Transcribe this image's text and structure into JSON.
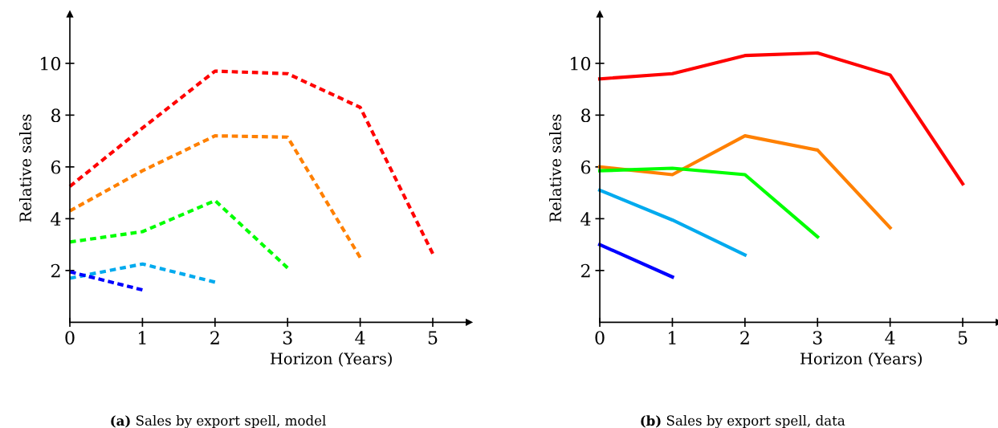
{
  "chart_data": [
    {
      "type": "line",
      "title": "(a) Sales by export spell, model",
      "xlabel": "Horizon (Years)",
      "ylabel": "Relative sales",
      "xlim": [
        0,
        5.5
      ],
      "ylim": [
        0,
        11.9
      ],
      "xticks": [
        0,
        1,
        2,
        3,
        4,
        5
      ],
      "yticks": [
        2,
        4,
        6,
        8,
        10
      ],
      "line_style": "dashed",
      "grid": false,
      "legend": false,
      "series": [
        {
          "color": "#ff0000",
          "x": [
            0,
            1,
            2,
            3,
            4,
            5
          ],
          "values": [
            5.25,
            7.5,
            9.7,
            9.6,
            8.3,
            2.65
          ]
        },
        {
          "color": "#ff8000",
          "x": [
            0,
            1,
            2,
            3,
            4
          ],
          "values": [
            4.3,
            5.85,
            7.2,
            7.15,
            2.5
          ]
        },
        {
          "color": "#00ff00",
          "x": [
            0,
            1,
            2,
            3
          ],
          "values": [
            3.1,
            3.5,
            4.7,
            2.1
          ]
        },
        {
          "color": "#00aaee",
          "x": [
            0,
            1,
            2
          ],
          "values": [
            1.7,
            2.25,
            1.55
          ]
        },
        {
          "color": "#0000ff",
          "x": [
            0,
            1
          ],
          "values": [
            1.95,
            1.25
          ]
        }
      ]
    },
    {
      "type": "line",
      "title": "(b) Sales by export spell, data",
      "xlabel": "Horizon (Years)",
      "ylabel": "Relative sales",
      "xlim": [
        0,
        5.5
      ],
      "ylim": [
        0,
        11.9
      ],
      "xticks": [
        0,
        1,
        2,
        3,
        4,
        5
      ],
      "yticks": [
        2,
        4,
        6,
        8,
        10
      ],
      "line_style": "solid",
      "grid": false,
      "legend": false,
      "series": [
        {
          "color": "#ff0000",
          "x": [
            0,
            1,
            2,
            3,
            4,
            5
          ],
          "values": [
            9.4,
            9.6,
            10.3,
            10.4,
            9.55,
            5.35
          ]
        },
        {
          "color": "#ff8000",
          "x": [
            0,
            1,
            2,
            3,
            4
          ],
          "values": [
            6.0,
            5.7,
            7.2,
            6.65,
            3.65
          ]
        },
        {
          "color": "#00ff00",
          "x": [
            0,
            1,
            2,
            3
          ],
          "values": [
            5.85,
            5.95,
            5.7,
            3.3
          ]
        },
        {
          "color": "#00aaee",
          "x": [
            0,
            1,
            2
          ],
          "values": [
            5.1,
            3.95,
            2.6
          ]
        },
        {
          "color": "#0000ff",
          "x": [
            0,
            1
          ],
          "values": [
            3.0,
            1.75
          ]
        }
      ]
    }
  ]
}
